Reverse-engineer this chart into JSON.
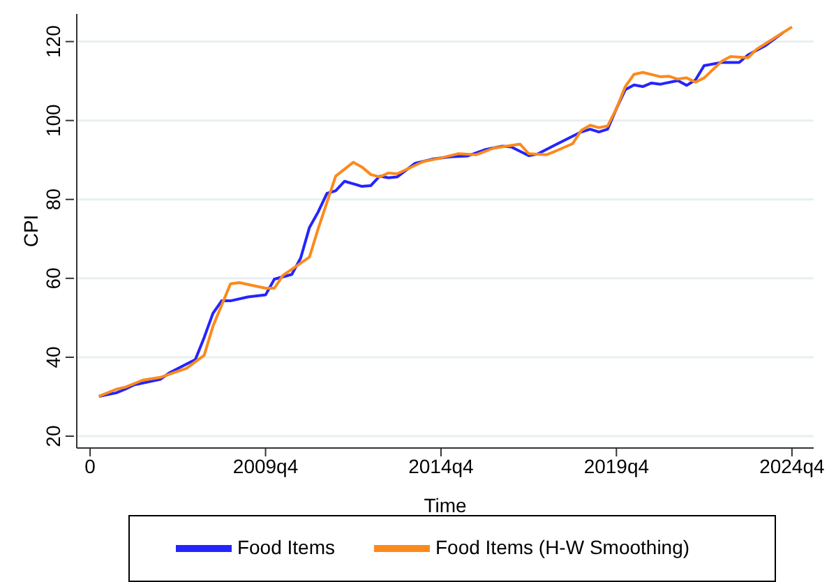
{
  "chart_data": {
    "type": "line",
    "xlabel": "Time",
    "ylabel": "CPI",
    "xlim": [
      "2004-05-15",
      "2025-05-15"
    ],
    "xticks": [
      {
        "value": "2004-10",
        "label": "0"
      },
      {
        "value": "2009-10",
        "label": "2009q4"
      },
      {
        "value": "2014-10",
        "label": "2014q4"
      },
      {
        "value": "2019-10",
        "label": "2019q4"
      },
      {
        "value": "2024-10",
        "label": "2024q4"
      }
    ],
    "ylim": [
      17,
      127
    ],
    "yticks": [
      20,
      40,
      60,
      80,
      100,
      120
    ],
    "grid": "y",
    "legend": "bottom",
    "line_style": "solid",
    "marker": "none",
    "series": [
      {
        "name": "Food Items",
        "color": "#2424ff",
        "x": [
          "2005-01",
          "2005-07",
          "2005-10",
          "2006-01",
          "2006-10",
          "2007-01",
          "2007-10",
          "2008-01",
          "2008-04",
          "2008-07",
          "2008-10",
          "2009-04",
          "2009-10",
          "2010-01",
          "2010-07",
          "2010-10",
          "2011-01",
          "2011-04",
          "2011-07",
          "2011-10",
          "2012-01",
          "2012-07",
          "2012-10",
          "2013-01",
          "2013-04",
          "2013-07",
          "2014-01",
          "2014-07",
          "2015-01",
          "2015-07",
          "2016-01",
          "2016-07",
          "2016-10",
          "2017-04",
          "2017-07",
          "2018-01",
          "2018-07",
          "2018-10",
          "2019-01",
          "2019-04",
          "2019-07",
          "2019-10",
          "2020-01",
          "2020-04",
          "2020-07",
          "2020-10",
          "2021-01",
          "2021-07",
          "2021-10",
          "2022-01",
          "2022-04",
          "2022-10",
          "2023-04",
          "2023-07",
          "2024-01",
          "2024-07"
        ],
        "values": [
          30.1,
          31.0,
          31.9,
          33.0,
          34.4,
          36.0,
          39.4,
          45.0,
          51.1,
          54.3,
          54.3,
          55.3,
          55.8,
          59.8,
          61.0,
          65.1,
          72.9,
          76.8,
          81.5,
          82.2,
          84.6,
          83.3,
          83.5,
          85.9,
          85.5,
          85.7,
          89.1,
          90.2,
          90.8,
          91.0,
          92.6,
          93.5,
          93.3,
          91.1,
          91.5,
          93.8,
          96.0,
          97.1,
          97.8,
          97.1,
          97.8,
          103.0,
          107.8,
          109.0,
          108.6,
          109.5,
          109.2,
          110.1,
          108.9,
          110.3,
          113.9,
          114.7,
          114.7,
          116.6,
          119.0,
          122.3
        ]
      },
      {
        "name": "Food Items (H-W Smoothing)",
        "color": "#fb8a1c",
        "x": [
          "2005-01",
          "2005-07",
          "2005-10",
          "2006-04",
          "2006-10",
          "2007-07",
          "2008-01",
          "2008-04",
          "2008-10",
          "2009-01",
          "2009-10",
          "2010-01",
          "2010-04",
          "2010-07",
          "2011-01",
          "2011-04",
          "2011-10",
          "2012-04",
          "2012-07",
          "2012-10",
          "2013-01",
          "2013-04",
          "2013-07",
          "2014-04",
          "2014-10",
          "2015-04",
          "2015-10",
          "2016-04",
          "2017-01",
          "2017-04",
          "2017-10",
          "2018-01",
          "2018-07",
          "2018-10",
          "2019-01",
          "2019-04",
          "2019-07",
          "2019-10",
          "2020-01",
          "2020-04",
          "2020-07",
          "2021-01",
          "2021-04",
          "2021-07",
          "2021-10",
          "2022-01",
          "2022-04",
          "2022-10",
          "2023-01",
          "2023-07",
          "2023-10",
          "2024-04",
          "2024-10"
        ],
        "values": [
          30.1,
          31.9,
          32.4,
          34.2,
          34.9,
          37.2,
          40.5,
          47.8,
          58.6,
          58.9,
          57.5,
          57.5,
          60.8,
          62.3,
          65.4,
          72.5,
          85.9,
          89.4,
          88.2,
          86.3,
          85.7,
          86.7,
          86.5,
          89.6,
          90.5,
          91.6,
          91.3,
          93.0,
          94.0,
          91.6,
          91.3,
          92.2,
          94.1,
          97.5,
          98.8,
          98.2,
          98.6,
          103.0,
          108.6,
          111.7,
          112.2,
          111.1,
          111.2,
          110.5,
          110.8,
          109.7,
          110.8,
          115.0,
          116.2,
          115.9,
          118.1,
          120.9,
          123.7
        ]
      }
    ]
  }
}
